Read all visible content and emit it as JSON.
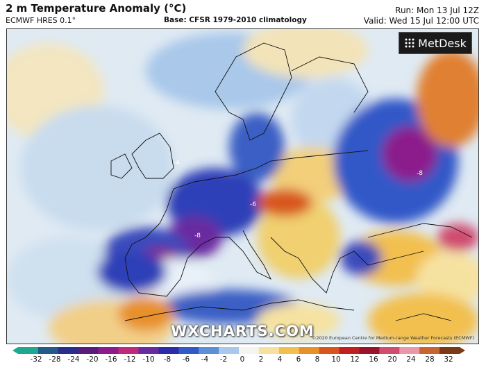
{
  "header": {
    "title": "2 m Temperature Anomaly (°C)",
    "model": "ECMWF HRES 0.1°",
    "base": "Base: CFSR 1979-2010 climatology",
    "run": "Run: Mon 13 Jul 12Z",
    "valid": "Valid: Wed 15 Jul 12:00 UTC"
  },
  "logo": {
    "text": "MetDesk",
    "icon": "metdesk-grid-icon"
  },
  "watermark": "WXCHARTS.COM",
  "credit": "©2020 European Centre for Medium-range Weather Forecasts (ECMWF)",
  "colorbar": {
    "ticks": [
      "-32",
      "-28",
      "-24",
      "-20",
      "-16",
      "-12",
      "-10",
      "-8",
      "-6",
      "-4",
      "-2",
      "0",
      "2",
      "4",
      "6",
      "8",
      "10",
      "12",
      "16",
      "20",
      "24",
      "28",
      "32"
    ],
    "colors": [
      "#1fa890",
      "#225a8a",
      "#2a2d8c",
      "#5a1c7a",
      "#8c1c8c",
      "#c0287a",
      "#6a2aa0",
      "#2c2ca8",
      "#3358c8",
      "#5c8fd8",
      "#a8c8ec",
      "#f4f4f0",
      "#f6e2a0",
      "#f2c050",
      "#e8902a",
      "#d8561e",
      "#c02020",
      "#98142a",
      "#d04c70",
      "#e898a8",
      "#c86430",
      "#7a3a18"
    ]
  },
  "map_labels": [
    "-8",
    "-8",
    "-6",
    "-4"
  ]
}
